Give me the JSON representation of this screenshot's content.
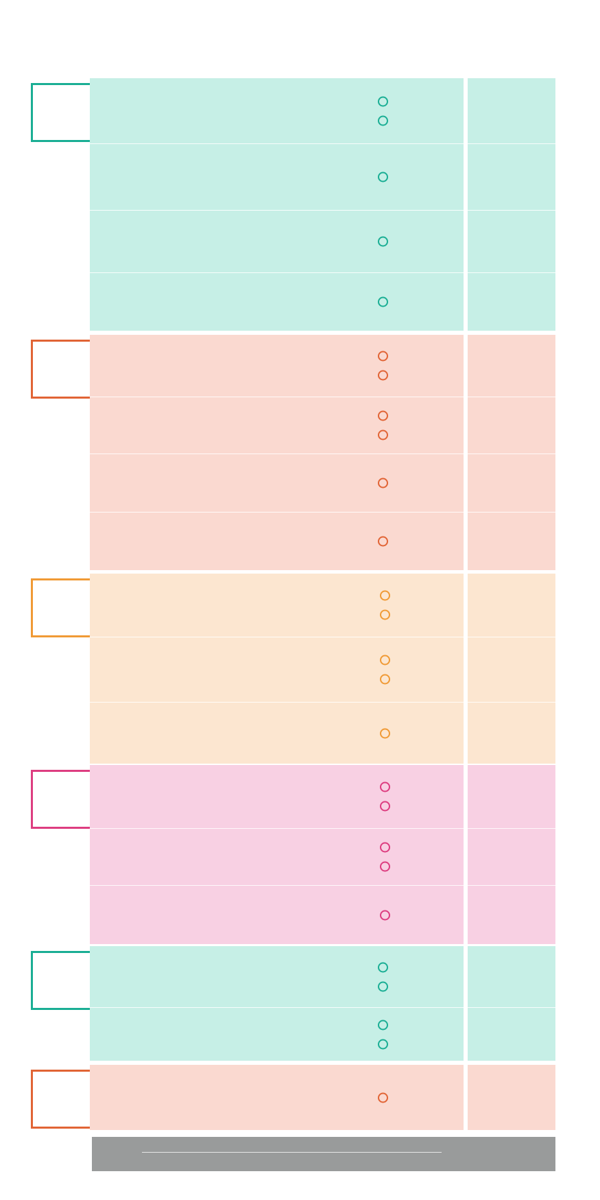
{
  "colors": {
    "teal": {
      "fill": "#c6efe6",
      "accent": "#1aae94"
    },
    "red": {
      "fill": "#fad9d0",
      "accent": "#e16435"
    },
    "orange": {
      "fill": "#fce6d0",
      "accent": "#f09a35"
    },
    "pink": {
      "fill": "#f8d0e3",
      "accent": "#dd3d80"
    },
    "footer": "#999b9b"
  },
  "groups": [
    {
      "id": "group-1",
      "theme": "teal",
      "rows": [
        {
          "dots": 2
        },
        {
          "dots": 1
        },
        {
          "dots": 1
        },
        {
          "dots": 1
        }
      ]
    },
    {
      "id": "group-2",
      "theme": "red",
      "rows": [
        {
          "dots": 2
        },
        {
          "dots": 2
        },
        {
          "dots": 1
        },
        {
          "dots": 1
        }
      ]
    },
    {
      "id": "group-3",
      "theme": "orange",
      "rows": [
        {
          "dots": 2
        },
        {
          "dots": 2
        },
        {
          "dots": 1
        }
      ]
    },
    {
      "id": "group-4",
      "theme": "pink",
      "rows": [
        {
          "dots": 2
        },
        {
          "dots": 2
        },
        {
          "dots": 1
        }
      ]
    },
    {
      "id": "group-5",
      "theme": "teal",
      "rows": [
        {
          "dots": 2
        },
        {
          "dots": 2
        }
      ]
    },
    {
      "id": "group-6",
      "theme": "red",
      "rows": [
        {
          "dots": 1
        }
      ]
    }
  ]
}
